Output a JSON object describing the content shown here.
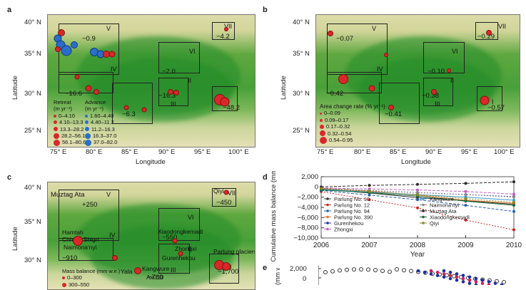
{
  "panels": {
    "a": {
      "label": "a",
      "xticks": [
        "75° E",
        "80° E",
        "85° E",
        "90° E",
        "95° E",
        "100° E"
      ],
      "yticks": [
        "40° N",
        "35° N",
        "30° N",
        "25° N"
      ],
      "xlabel": "Longitude",
      "ylabel": "Latitude",
      "regions": [
        "V",
        "VI",
        "VII",
        "IV",
        "III",
        "II",
        "I"
      ],
      "values": [
        "−0.9",
        "−4.2",
        "−2.0",
        "−16.6",
        "−16.3",
        "−6.3",
        "−48.2"
      ],
      "legend": {
        "retreat_title": "Retreat",
        "advance_title": "Advance",
        "units": "(m yr⁻¹)",
        "retreat_classes": [
          "0–4.10",
          "4.10–13.3",
          "13.3–28.2",
          "28.2–56.1",
          "56.1–80.6"
        ],
        "advance_classes": [
          "1.60–4.40",
          "4.40–11.2",
          "11.2–16.3",
          "16.3–37.0",
          "37.0–82.0"
        ]
      }
    },
    "b": {
      "label": "b",
      "xticks": [
        "75° E",
        "80° E",
        "85° E",
        "90° E",
        "95° E",
        "100° E"
      ],
      "yticks": [
        "40° N",
        "35° N",
        "30° N",
        "25° N"
      ],
      "xlabel": "Longitude",
      "ylabel": "Latitude",
      "regions": [
        "V",
        "VI",
        "VII",
        "IV",
        "III",
        "II",
        "I"
      ],
      "values": [
        "−0.07",
        "−0.29",
        "−0.10",
        "−0.42",
        "−0.38",
        "−0.41",
        "−0.57"
      ],
      "legend": {
        "title": "Area change rate (% yr⁻¹)",
        "classes": [
          "0–0.09",
          "0.09–0.17",
          "0.17–0.32",
          "0.32–0.54",
          "0.54–0.95"
        ]
      }
    },
    "c": {
      "label": "c",
      "yticks": [
        "40° N",
        "35° N",
        "30° N"
      ],
      "ylabel": "Latitude",
      "regions": [
        "V",
        "VI",
        "VII",
        "IV",
        "III",
        "II",
        "I"
      ],
      "values": [
        "+250",
        "−450",
        "−550",
        "−910",
        "−760",
        "−1,700"
      ],
      "glaciers": [
        "Muztag Ata",
        "Qiyi",
        "Hamtah",
        "Chhota Shigri",
        "Naimona'nyi",
        "Xiaodongkemadi",
        "Zhongxi",
        "Gurenhekou",
        "Kangwure",
        "Yala",
        "Ax010",
        "Parlung glaciers"
      ],
      "legend": {
        "title": "Mass balance (mm w.e.)",
        "classes": [
          "0–300",
          "300–550"
        ]
      }
    },
    "d": {
      "label": "d",
      "xlabel": "Year",
      "ylabel": "Cumulative mass balance (mm w.e.)",
      "yticks": [
        "2,000",
        "0",
        "−2,000",
        "−4,000",
        "−6,000",
        "−8,000",
        "−10,000"
      ],
      "xticks": [
        "2006",
        "2007",
        "2008",
        "2009",
        "2010"
      ]
    },
    "e": {
      "label": "e",
      "ylabel": "mass (mm w.e.)",
      "yticks": [
        "2,000",
        "0"
      ]
    }
  },
  "chart_data": {
    "type": "line",
    "title": "",
    "xlabel": "Year",
    "ylabel": "Cumulative mass balance (mm w.e.)",
    "x": [
      2006,
      2007,
      2008,
      2009,
      2010
    ],
    "ylim": [
      -10000,
      2000
    ],
    "series": [
      {
        "name": "Parlung No. 10",
        "color": "#333333",
        "values": [
          -400,
          -1200,
          -2100,
          -2700,
          -3400
        ]
      },
      {
        "name": "Parlung No. 12",
        "color": "#c0282a",
        "values": [
          -900,
          -2500,
          -4100,
          -6500,
          -8400
        ]
      },
      {
        "name": "Parlung No. 94",
        "color": "#2a5fa8",
        "values": [
          -700,
          -1600,
          -2500,
          -3600,
          -4800
        ]
      },
      {
        "name": "Parlung No. 390",
        "color": "#e07830",
        "values": [
          -300,
          -800,
          -1600,
          -2600,
          -3200
        ]
      },
      {
        "name": "Gurenhekou",
        "color": "#23309a",
        "values": [
          -300,
          -700,
          -1100,
          -1500,
          -1900
        ]
      },
      {
        "name": "Zhongxi",
        "color": "#c060c0",
        "values": [
          -200,
          -400,
          -600,
          -900,
          -1400
        ]
      },
      {
        "name": "Kangwure",
        "color": "#3c9ad0",
        "values": [
          -500,
          -1000,
          -1500,
          -2000,
          -2600
        ]
      },
      {
        "name": "Naimona'nyi",
        "color": "#8a8a8a",
        "values": [
          -400,
          -700,
          -1100,
          -1500,
          -2000
        ]
      },
      {
        "name": "Muztag Ata",
        "color": "#2a2a2a",
        "values": [
          0,
          300,
          500,
          700,
          1000
        ]
      },
      {
        "name": "Xiaodongkemadi",
        "color": "#1a6a3a",
        "values": [
          -600,
          -1100,
          -1800,
          -2800,
          -3600
        ]
      },
      {
        "name": "Qiyi",
        "color": "#8a8a20",
        "values": [
          -300,
          -900,
          -1500,
          -2300,
          -3000
        ]
      }
    ]
  }
}
